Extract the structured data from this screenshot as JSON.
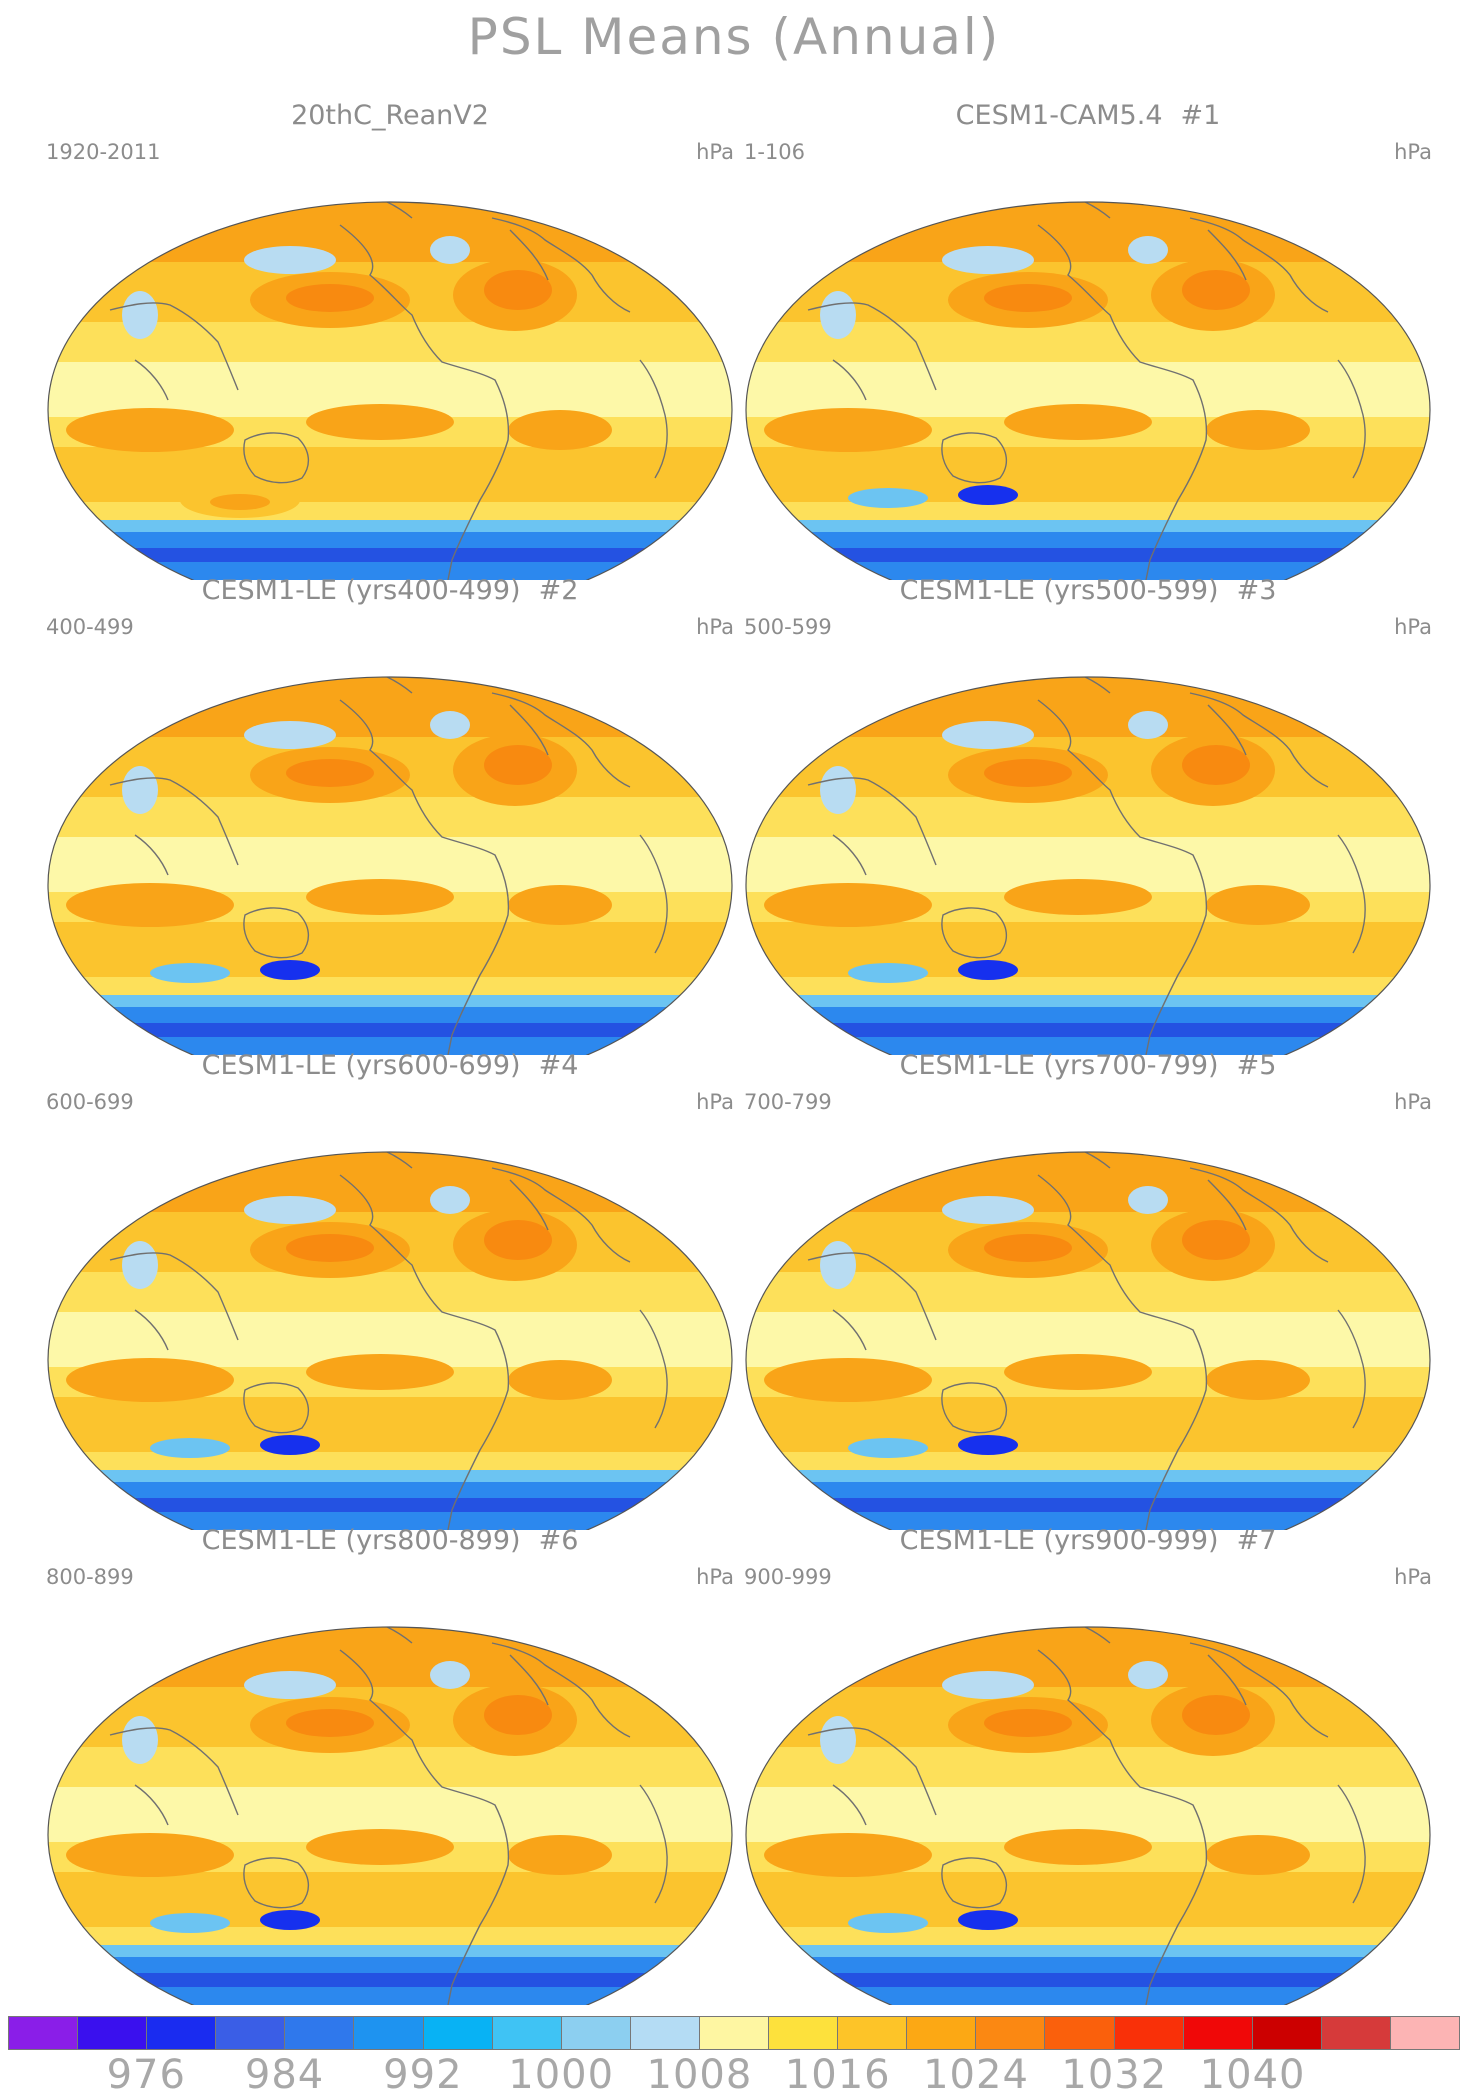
{
  "title": "PSL Means (Annual)",
  "units": "hPa",
  "panels": [
    {
      "title": "20thC_ReanV2",
      "num": "",
      "years": "1920-2011",
      "variant": "obs"
    },
    {
      "title": "CESM1-CAM5.4",
      "num": "#1",
      "years": "1-106",
      "variant": "model"
    },
    {
      "title": "CESM1-LE (yrs400-499)",
      "num": "#2",
      "years": "400-499",
      "variant": "model"
    },
    {
      "title": "CESM1-LE (yrs500-599)",
      "num": "#3",
      "years": "500-599",
      "variant": "model"
    },
    {
      "title": "CESM1-LE (yrs600-699)",
      "num": "#4",
      "years": "600-699",
      "variant": "model"
    },
    {
      "title": "CESM1-LE (yrs700-799)",
      "num": "#5",
      "years": "700-799",
      "variant": "model"
    },
    {
      "title": "CESM1-LE (yrs800-899)",
      "num": "#6",
      "years": "800-899",
      "variant": "model"
    },
    {
      "title": "CESM1-LE (yrs900-999)",
      "num": "#7",
      "years": "900-999",
      "variant": "model"
    }
  ],
  "colorbar": {
    "colors": [
      "#8a1ee8",
      "#3a10ee",
      "#1a2cf0",
      "#3a5ee6",
      "#2f78ec",
      "#1e93f0",
      "#08b2f4",
      "#3fc3f4",
      "#8ccff0",
      "#b4dcf4",
      "#fef6a2",
      "#fde13c",
      "#fdc428",
      "#fca814",
      "#fb8812",
      "#fa600c",
      "#f93008",
      "#f00808",
      "#cc0000",
      "#d63a3a",
      "#fcb4b4"
    ],
    "labels": [
      "976",
      "984",
      "992",
      "1000",
      "1008",
      "1016",
      "1024",
      "1032",
      "1040"
    ]
  },
  "map_colors": {
    "land_line": "#707070",
    "pale": "#fdf8a8",
    "light": "#fde05a",
    "mid": "#fbc42e",
    "orange": "#f9a418",
    "deep_orange": "#f88a10",
    "light_blue": "#b8dcf2",
    "sky": "#6cc4f2",
    "blue": "#2c88ee",
    "dark_blue": "#2452e2",
    "deep_blue": "#1630ee"
  }
}
